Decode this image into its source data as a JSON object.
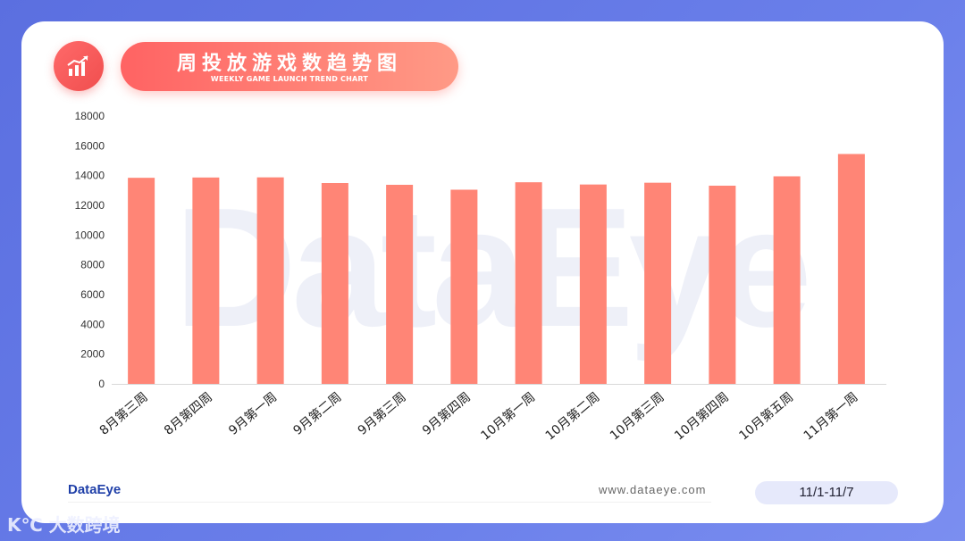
{
  "header": {
    "title": "周投放游戏数趋势图",
    "subtitle": "WEEKLY GAME LAUNCH TREND CHART",
    "icon": "bar-chart-trend-icon"
  },
  "watermark": "DataEye",
  "footer": {
    "logo": "DataEye",
    "website": "www.dataeye.com",
    "date_range": "11/1-11/7",
    "corner_mark": "K℃ 大数跨境"
  },
  "colors": {
    "bar": "#ff8576",
    "accent": "#ff6363",
    "background": "#5b6fe0"
  },
  "chart_data": {
    "type": "bar",
    "title": "周投放游戏数趋势图",
    "categories": [
      "8月第三周",
      "8月第四周",
      "9月第一周",
      "9月第二周",
      "9月第三周",
      "9月第四周",
      "10月第一周",
      "10月第二周",
      "10月第三周",
      "10月第四周",
      "10月第五周",
      "11月第一周"
    ],
    "values": [
      13850,
      13870,
      13880,
      13500,
      13380,
      13050,
      13550,
      13400,
      13520,
      13320,
      13950,
      15450
    ],
    "ylim": [
      0,
      18000
    ],
    "yticks": [
      0,
      2000,
      4000,
      6000,
      8000,
      10000,
      12000,
      14000,
      16000,
      18000
    ],
    "grid": false,
    "legend": "none"
  }
}
